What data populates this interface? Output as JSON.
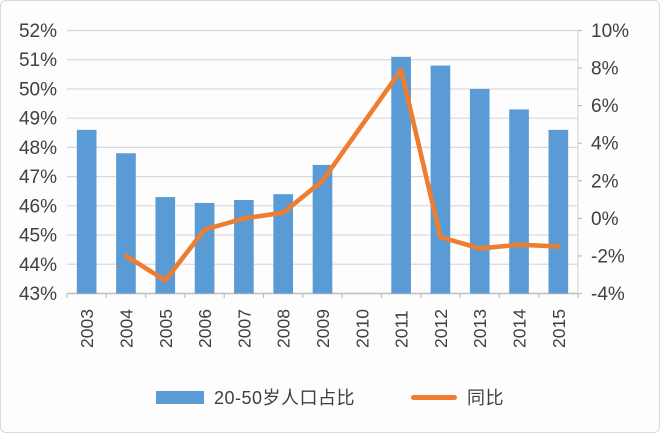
{
  "chart_data": {
    "type": "bar",
    "subtype": "combo-bar-line-dual-axis",
    "categories": [
      "2003",
      "2004",
      "2005",
      "2006",
      "2007",
      "2008",
      "2009",
      "2010",
      "2011",
      "2012",
      "2013",
      "2014",
      "2015"
    ],
    "series": [
      {
        "name": "20-50岁人口占比",
        "type": "bar",
        "axis": "left",
        "color": "#5B9BD5",
        "values": [
          48.6,
          47.8,
          46.3,
          46.1,
          46.2,
          46.4,
          47.4,
          null,
          51.1,
          50.8,
          50.0,
          49.3,
          48.6
        ]
      },
      {
        "name": "同比",
        "type": "line",
        "axis": "right",
        "color": "#ED7D31",
        "values": [
          null,
          -2.0,
          -3.3,
          -0.6,
          0.0,
          0.3,
          2.0,
          null,
          7.9,
          -1.0,
          -1.6,
          -1.4,
          -1.5
        ]
      }
    ],
    "left_axis": {
      "min": 43,
      "max": 52,
      "step": 1,
      "tick_labels": [
        "52%",
        "51%",
        "50%",
        "49%",
        "48%",
        "47%",
        "46%",
        "45%",
        "44%",
        "43%"
      ]
    },
    "right_axis": {
      "min": -4,
      "max": 10,
      "step": 2,
      "tick_labels": [
        "10%",
        "8%",
        "6%",
        "4%",
        "2%",
        "0%",
        "-2%",
        "-4%"
      ]
    },
    "title": "",
    "xlabel": "",
    "ylabel": "",
    "grid": "horizontal gridlines at each left-axis 1% step",
    "legend_position": "bottom",
    "notes": "no bar and no line point in 2010; line connects 2009 to 2011 straight through the gap; line starts at 2004"
  },
  "legend": {
    "bar_label": "20-50岁人口占比",
    "line_label": "同比"
  },
  "colors": {
    "bar": "#5B9BD5",
    "line": "#ED7D31",
    "gridline": "#D9D9D9",
    "axis_line": "#BFBFBF",
    "tick_text": "#404040",
    "background": "#FDFDFD"
  }
}
